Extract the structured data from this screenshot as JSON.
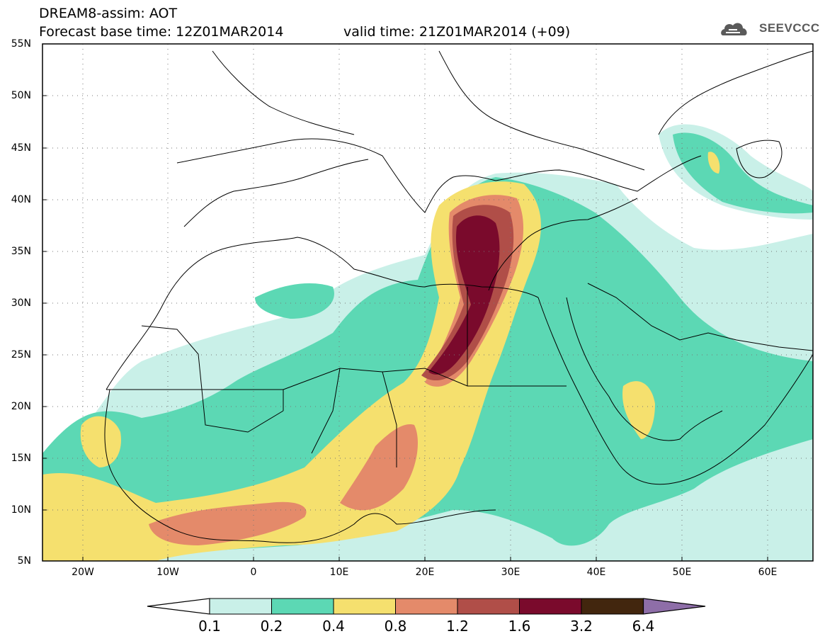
{
  "header": {
    "line1": "DREAM8-assim: AOT",
    "line2": "Forecast base time: 12Z01MAR2014",
    "valid": "valid time: 21Z01MAR2014 (+09)"
  },
  "logo": {
    "text": "SEEVCCC",
    "icon": "cloud-icon"
  },
  "map": {
    "projection": "lat-lon",
    "lon_range": [
      -25,
      65
    ],
    "lat_range": [
      5,
      55
    ],
    "grid": true
  },
  "axes": {
    "lat_labels": [
      "55N",
      "50N",
      "45N",
      "40N",
      "35N",
      "30N",
      "25N",
      "20N",
      "15N",
      "10N",
      "5N"
    ],
    "lon_labels": [
      "20W",
      "10W",
      "0",
      "10E",
      "20E",
      "30E",
      "40E",
      "50E",
      "60E"
    ]
  },
  "colorbar": {
    "labels": [
      "0.1",
      "0.2",
      "0.4",
      "0.8",
      "1.2",
      "1.6",
      "3.2",
      "6.4"
    ],
    "colors": [
      "#c9f0e8",
      "#5cd8b4",
      "#f5e06e",
      "#e48a6a",
      "#b04e48",
      "#7a0a2c",
      "#42260e",
      "#8e6ea8"
    ]
  }
}
